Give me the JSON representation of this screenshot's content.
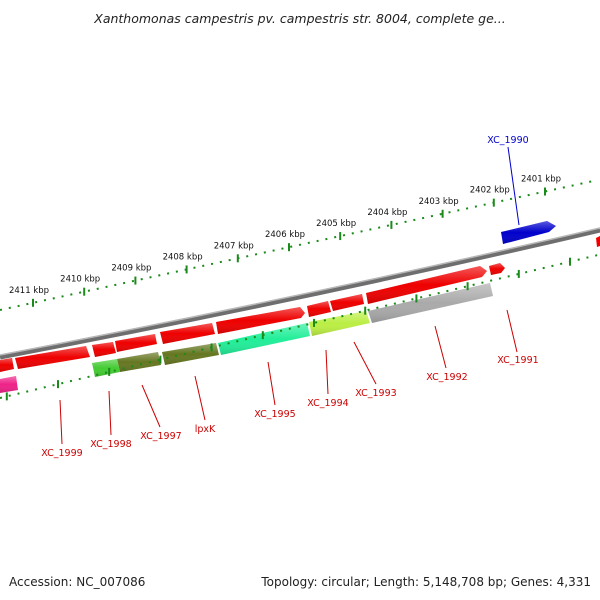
{
  "title": "Xanthomonas campestris pv. campestris str. 8004, complete ge...",
  "footer": {
    "accession": "Accession: NC_007086",
    "summary": "Topology: circular; Length: 5,148,708 bp; Genes: 4,331"
  },
  "scale_labels_outer": [
    "2401 kbp",
    "2402 kbp",
    "2403 kbp",
    "2404 kbp",
    "2405 kbp",
    "2406 kbp",
    "2407 kbp",
    "2408 kbp",
    "2409 kbp",
    "2410 kbp",
    "2411 kbp"
  ],
  "genes": [
    {
      "id": "XC_1990",
      "strand": "outer",
      "color": "#0000cc"
    },
    {
      "id": "XC_1991",
      "strand": "forward",
      "color": "#ee0000"
    },
    {
      "id": "XC_1992",
      "strand": "forward",
      "color": "#aaaaaa"
    },
    {
      "id": "XC_1993",
      "strand": "forward",
      "color": "#bbee44"
    },
    {
      "id": "XC_1994",
      "strand": "forward",
      "color": "#ee0000"
    },
    {
      "id": "XC_1995",
      "strand": "forward",
      "color": "#22ee99"
    },
    {
      "id": "lpxK",
      "strand": "forward",
      "color": "#667722"
    },
    {
      "id": "XC_1997",
      "strand": "forward",
      "color": "#667722"
    },
    {
      "id": "XC_1998",
      "strand": "forward",
      "color": "#44cc33"
    },
    {
      "id": "XC_1999",
      "strand": "forward",
      "color": "#ee0000"
    }
  ],
  "colors": {
    "backbone": "#8a8a8a",
    "tick": "#1a8a1a",
    "label_red": "#cc0000",
    "label_blue": "#0000cc",
    "gene_red": "#ee0000",
    "gene_pink": "#ee2288"
  }
}
